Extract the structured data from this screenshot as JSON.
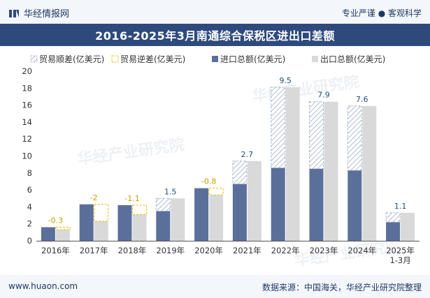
{
  "header": {
    "brand": "华经情报网",
    "tagline": "专业严谨 ● 客观科学"
  },
  "footer": {
    "website": "www.huaon.com",
    "source": "数据来源：中国海关，华经产业研究院整理"
  },
  "watermark": "华经产业研究院",
  "chart_data": {
    "type": "bar",
    "title": "2016-2025年3月南通综合保税区进出口差额",
    "categories": [
      "2016年",
      "2017年",
      "2018年",
      "2019年",
      "2020年",
      "2021年",
      "2022年",
      "2023年",
      "2024年",
      "2025年\n1-3月"
    ],
    "ylim": [
      0,
      20
    ],
    "yticks": [
      0,
      2,
      4,
      6,
      8,
      10,
      12,
      14,
      16,
      18,
      20
    ],
    "legend_position": "top-left",
    "grid": false,
    "series": [
      {
        "name": "贸易顺差(亿美元)",
        "kind": "balance_surplus"
      },
      {
        "name": "贸易逆差(亿美元)",
        "kind": "balance_deficit"
      },
      {
        "name": "进口总额(亿美元)",
        "values": [
          1.6,
          4.3,
          4.2,
          3.5,
          6.2,
          6.7,
          8.6,
          8.5,
          8.3,
          2.2
        ]
      },
      {
        "name": "出口总额(亿美元)",
        "values": [
          1.3,
          2.3,
          3.1,
          5.0,
          5.4,
          9.4,
          18.1,
          16.4,
          15.9,
          3.3
        ]
      }
    ],
    "balance": [
      -0.3,
      -2,
      -1.1,
      1.5,
      -0.8,
      2.7,
      9.5,
      7.9,
      7.6,
      1.1
    ],
    "balance_labels": [
      "-0.3",
      "-2",
      "-1.1",
      "1.5",
      "-0.8",
      "2.7",
      "9.5",
      "7.9",
      "7.6",
      "1.1"
    ],
    "colors": {
      "import": "#5b6f9b",
      "export": "#d9d9d9",
      "surplus": "#a9b4cc",
      "deficit": "#f2b600",
      "surplus_label": "#1f4e79",
      "deficit_label": "#c9a000"
    }
  }
}
